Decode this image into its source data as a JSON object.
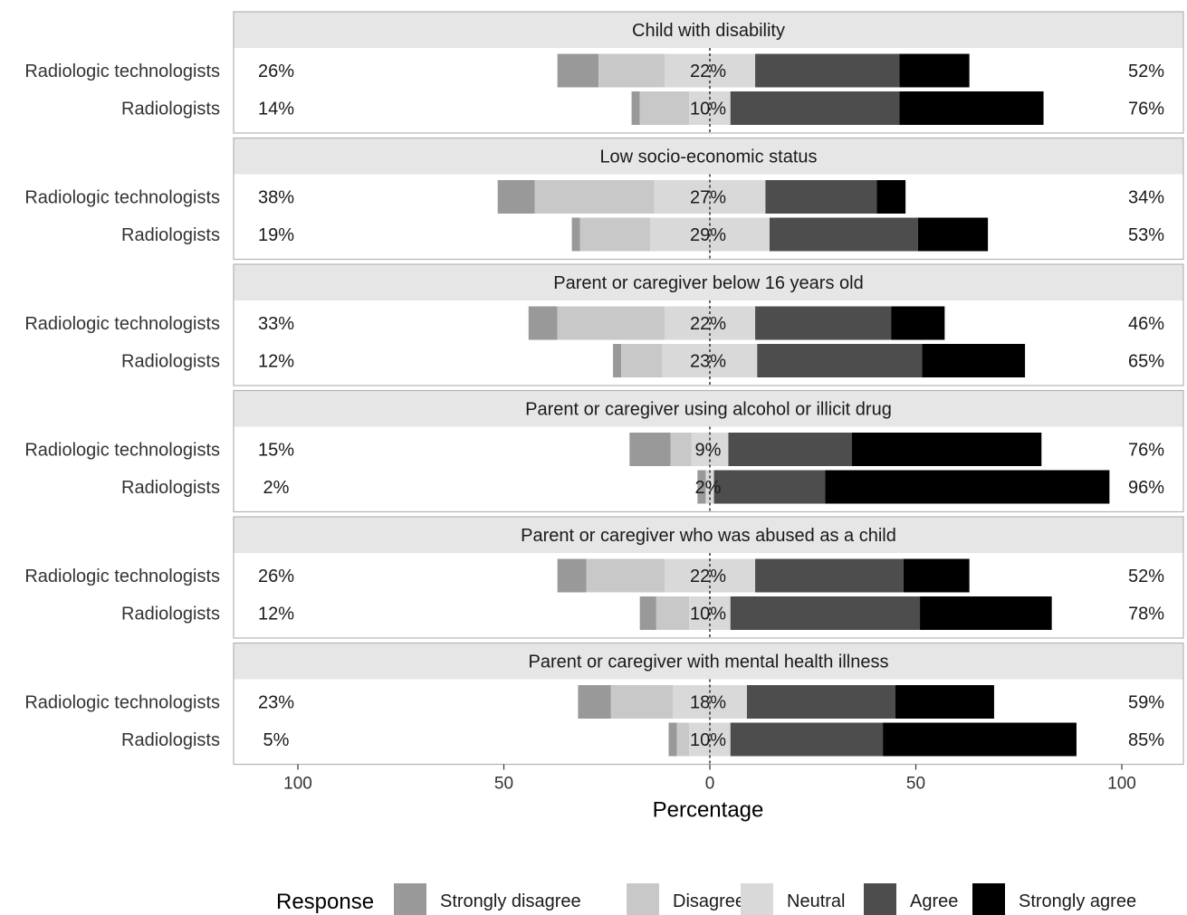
{
  "chart_data": {
    "type": "bar",
    "subtype": "diverging-stacked",
    "xlabel": "Percentage",
    "xticks": [
      100,
      50,
      0,
      50,
      100
    ],
    "xlim": [
      -100,
      100
    ],
    "groups": [
      "Radiologic technologists",
      "Radiologists"
    ],
    "legend": {
      "title": "Response",
      "position": "bottom",
      "items": [
        {
          "name": "Strongly disagree",
          "color": "#999999"
        },
        {
          "name": "Disagree",
          "color": "#c8c8c8"
        },
        {
          "name": "Neutral",
          "color": "#d9d9d9"
        },
        {
          "name": "Agree",
          "color": "#4d4d4d"
        },
        {
          "name": "Strongly agree",
          "color": "#000000"
        }
      ]
    },
    "panels": [
      {
        "title": "Child with disability",
        "rows": [
          {
            "group": "Radiologic technologists",
            "values": [
              10,
              16,
              22,
              35,
              17
            ],
            "left_label": "26%",
            "center_label": "22%",
            "right_label": "52%"
          },
          {
            "group": "Radiologists",
            "values": [
              2,
              12,
              10,
              41,
              35
            ],
            "left_label": "14%",
            "center_label": "10%",
            "right_label": "76%"
          }
        ]
      },
      {
        "title": "Low socio-economic status",
        "rows": [
          {
            "group": "Radiologic technologists",
            "values": [
              9,
              29,
              27,
              27,
              7
            ],
            "left_label": "38%",
            "center_label": "27%",
            "right_label": "34%"
          },
          {
            "group": "Radiologists",
            "values": [
              2,
              17,
              29,
              36,
              17
            ],
            "left_label": "19%",
            "center_label": "29%",
            "right_label": "53%"
          }
        ]
      },
      {
        "title": "Parent or caregiver below 16 years old",
        "rows": [
          {
            "group": "Radiologic technologists",
            "values": [
              7,
              26,
              22,
              33,
              13
            ],
            "left_label": "33%",
            "center_label": "22%",
            "right_label": "46%"
          },
          {
            "group": "Radiologists",
            "values": [
              2,
              10,
              23,
              40,
              25
            ],
            "left_label": "12%",
            "center_label": "23%",
            "right_label": "65%"
          }
        ]
      },
      {
        "title": "Parent or caregiver using alcohol or illicit drug",
        "rows": [
          {
            "group": "Radiologic technologists",
            "values": [
              10,
              5,
              9,
              30,
              46
            ],
            "left_label": "15%",
            "center_label": "9%",
            "right_label": "76%"
          },
          {
            "group": "Radiologists",
            "values": [
              2,
              0,
              2,
              27,
              69
            ],
            "left_label": "2%",
            "center_label": "2%",
            "right_label": "96%"
          }
        ]
      },
      {
        "title": "Parent or caregiver who was abused as a child",
        "rows": [
          {
            "group": "Radiologic technologists",
            "values": [
              7,
              19,
              22,
              36,
              16
            ],
            "left_label": "26%",
            "center_label": "22%",
            "right_label": "52%"
          },
          {
            "group": "Radiologists",
            "values": [
              4,
              8,
              10,
              46,
              32
            ],
            "left_label": "12%",
            "center_label": "10%",
            "right_label": "78%"
          }
        ]
      },
      {
        "title": "Parent or caregiver with mental health illness",
        "rows": [
          {
            "group": "Radiologic technologists",
            "values": [
              8,
              15,
              18,
              36,
              24
            ],
            "left_label": "23%",
            "center_label": "18%",
            "right_label": "59%"
          },
          {
            "group": "Radiologists",
            "values": [
              2,
              3,
              10,
              37,
              47
            ],
            "left_label": "5%",
            "center_label": "10%",
            "right_label": "85%"
          }
        ]
      }
    ]
  }
}
